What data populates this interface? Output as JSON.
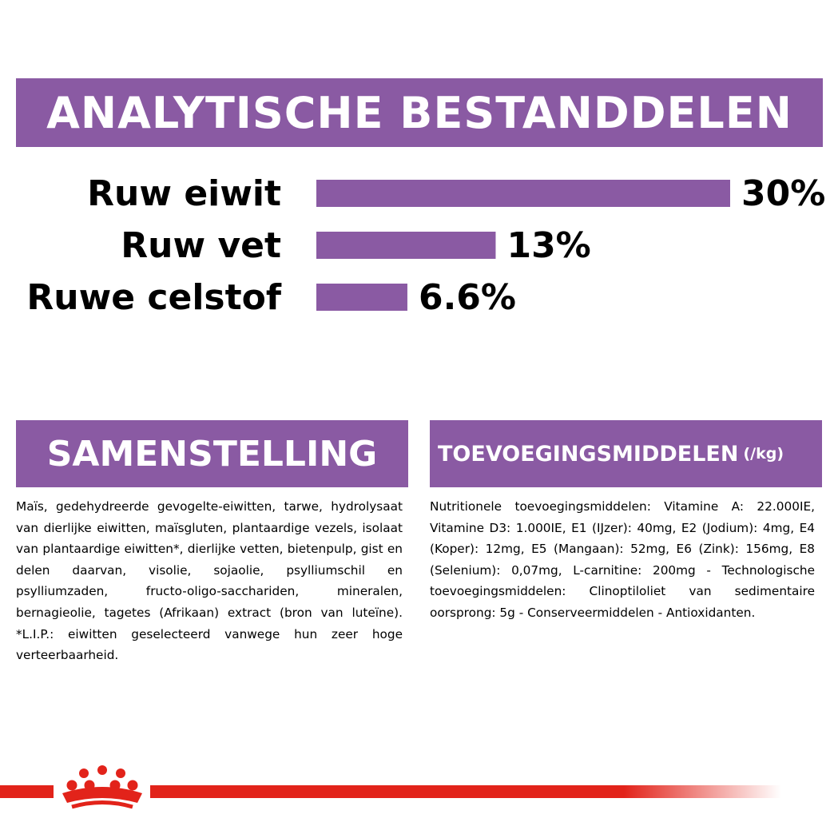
{
  "header": {
    "title": "ANALYTISCHE BESTANDDELEN"
  },
  "chart_data": {
    "type": "bar",
    "orientation": "horizontal",
    "categories": [
      "Ruw eiwit",
      "Ruw vet",
      "Ruwe celstof"
    ],
    "values": [
      30,
      13,
      6.6
    ],
    "value_labels": [
      "30%",
      "13%",
      "6.6%"
    ],
    "xlim": [
      0,
      30
    ],
    "grid": false,
    "bar_color": "#8a5aa3"
  },
  "samenstelling": {
    "heading": "SAMENSTELLING",
    "text": "Maïs, gedehydreerde gevogelte-eiwitten, tarwe, hydrolysaat van dierlijke eiwitten, maïsgluten, plantaardige vezels, isolaat van plantaardige eiwitten*, dierlijke vetten, bietenpulp, gist en delen daarvan, visolie, sojaolie, psylliumschil en psylliumzaden, fructo-oligo-sacchariden, mineralen, bernagieolie, tagetes (Afrikaan) extract (bron van luteïne). *L.I.P.: eiwitten geselecteerd vanwege hun zeer hoge verteerbaarheid."
  },
  "toevoegingsmiddelen": {
    "heading": "TOEVOEGINGSMIDDELEN",
    "unit": "(/kg)",
    "text": "Nutritionele toevoegingsmiddelen: Vitamine A: 22.000IE, Vitamine D3: 1.000IE, E1 (IJzer): 40mg, E2 (Jodium): 4mg, E4 (Koper): 12mg, E5 (Mangaan): 52mg, E6 (Zink): 156mg, E8 (Selenium): 0,07mg, L-carnitine: 200mg - Technologische toevoegingsmiddelen: Clinoptiloliet van sedimentaire oorsprong: 5g - Conserveermiddelen - Antioxidanten."
  },
  "colors": {
    "accent": "#8a5aa3",
    "brand_red": "#e2231a"
  },
  "footer": {
    "logo": "royal-canin-crown-icon"
  }
}
